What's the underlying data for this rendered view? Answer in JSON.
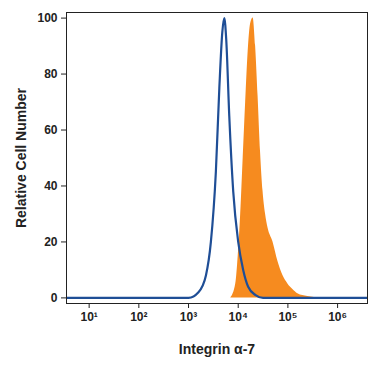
{
  "chart_data": {
    "type": "histogram_overlay",
    "x_label": "Integrin α-7",
    "y_label": "Relative Cell Number",
    "log": "x",
    "grid": false,
    "xlim": [
      3.5,
      4000000
    ],
    "xticks": [
      {
        "value": 10,
        "label": "10¹"
      },
      {
        "value": 100,
        "label": "10²"
      },
      {
        "value": 1000,
        "label": "10³"
      },
      {
        "value": 10000,
        "label": "10⁴"
      },
      {
        "value": 100000,
        "label": "10⁵"
      },
      {
        "value": 1000000,
        "label": "10⁶"
      }
    ],
    "ylim": [
      -2,
      102
    ],
    "yticks": [
      0,
      20,
      40,
      60,
      80,
      100
    ],
    "series": [
      {
        "type": "area",
        "color": "#f68b1f",
        "x": [
          7079,
          8913,
          10000,
          11220,
          12589,
          14125,
          15849,
          17783,
          19953,
          22387,
          25119,
          28184,
          31623,
          35481,
          39811,
          50119,
          63096,
          79433,
          100000,
          125893,
          158489,
          251189,
          398107
        ],
        "values": [
          0,
          5,
          15,
          30,
          50,
          70,
          88,
          98,
          100,
          90,
          72,
          52,
          38,
          30,
          25,
          20,
          13,
          8,
          5,
          3,
          1.5,
          0.5,
          0
        ]
      },
      {
        "type": "line",
        "color": "#1f4e96",
        "x": [
          3.5,
          1000,
          1585,
          2239,
          2818,
          3548,
          4169,
          4786,
          5248,
          5754,
          6607,
          7943,
          10000,
          12589,
          15849,
          22387,
          31623,
          4000000
        ],
        "values": [
          0,
          0,
          2,
          8,
          20,
          45,
          75,
          95,
          100,
          92,
          65,
          38,
          20,
          10,
          4,
          1,
          0,
          0
        ]
      }
    ]
  }
}
